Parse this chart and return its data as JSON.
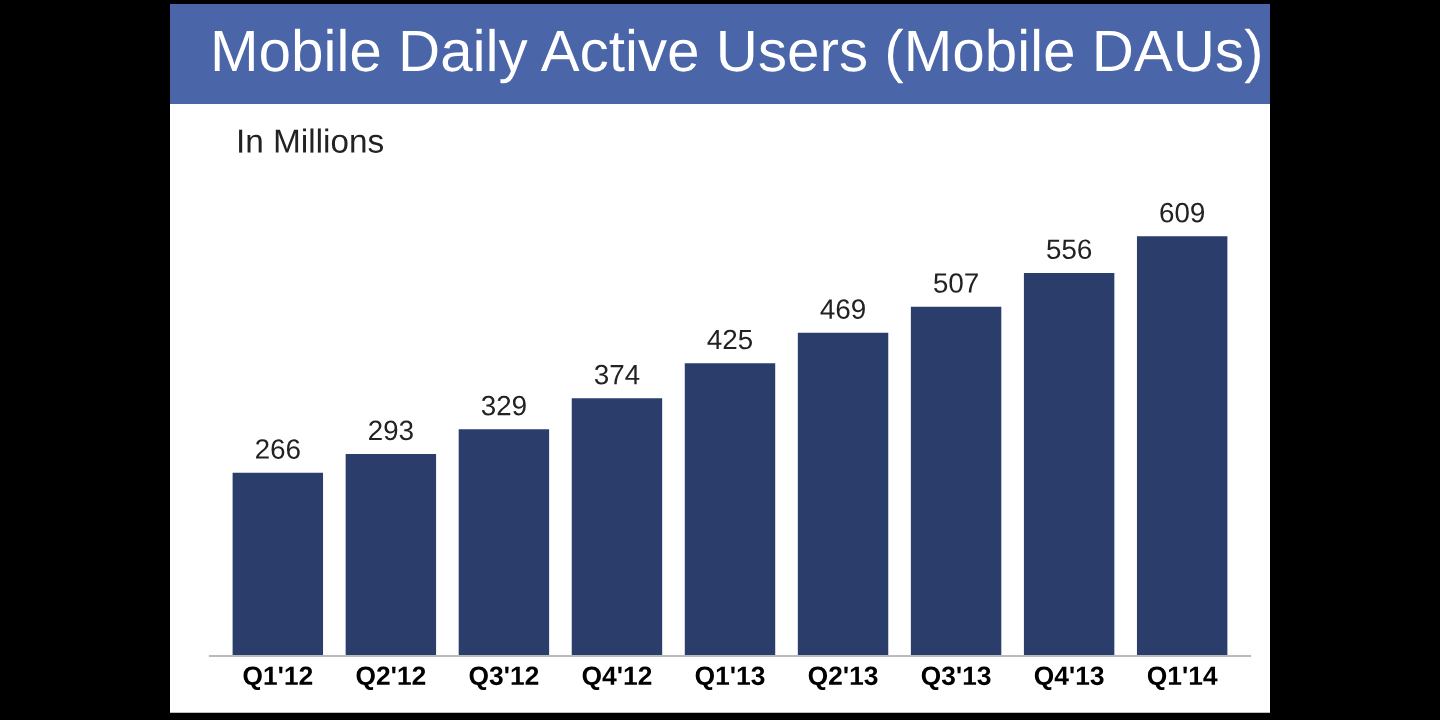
{
  "chart_data": {
    "type": "bar",
    "title": "Mobile Daily Active Users (Mobile DAUs)",
    "subtitle": "In Millions",
    "categories": [
      "Q1'12",
      "Q2'12",
      "Q3'12",
      "Q4'12",
      "Q1'13",
      "Q2'13",
      "Q3'13",
      "Q4'13",
      "Q1'14"
    ],
    "values": [
      266,
      293,
      329,
      374,
      425,
      469,
      507,
      556,
      609
    ],
    "color": "#2b3d6b",
    "data_labels": true,
    "grid": false,
    "legend": false
  }
}
